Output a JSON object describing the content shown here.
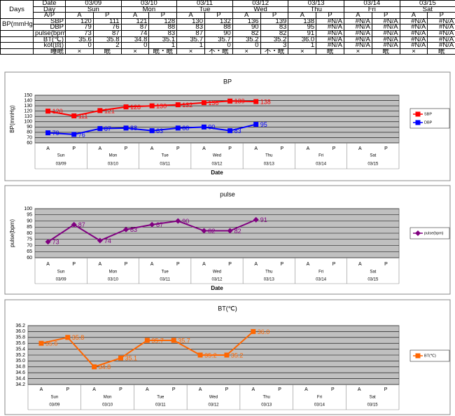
{
  "table": {
    "days_label": "Days",
    "date_label": "Date",
    "day_label": "Day",
    "ap_label": "A/P",
    "bp_label": "BP(mmHg)",
    "dates": [
      "03/09",
      "03/10",
      "03/11",
      "03/12",
      "03/13",
      "03/14",
      "03/15"
    ],
    "days": [
      "Sun",
      "Mon",
      "Tue",
      "Wed",
      "Thu",
      "Fri",
      "Sat"
    ],
    "ap": [
      "A",
      "P",
      "A",
      "P",
      "A",
      "P",
      "A",
      "P",
      "A",
      "P",
      "A",
      "P",
      "A",
      "P"
    ],
    "rows": [
      {
        "label": "SBP",
        "cells": [
          "120",
          "111",
          "121",
          "128",
          "130",
          "132",
          "136",
          "139",
          "138",
          "#N/A",
          "#N/A",
          "#N/A",
          "#N/A",
          "#N/A"
        ]
      },
      {
        "label": "DBP",
        "cells": [
          "79",
          "76",
          "87",
          "88",
          "83",
          "88",
          "90",
          "83",
          "95",
          "#N/A",
          "#N/A",
          "#N/A",
          "#N/A",
          "#N/A"
        ]
      },
      {
        "label": "pulse(bpm)",
        "cells": [
          "73",
          "87",
          "74",
          "83",
          "87",
          "90",
          "82",
          "82",
          "91",
          "#N/A",
          "#N/A",
          "#N/A",
          "#N/A",
          "#N/A"
        ]
      },
      {
        "label": "BT(℃)",
        "cells": [
          "35.6",
          "35.8",
          "34.8",
          "35.1",
          "35.7",
          "35.7",
          "35.2",
          "35.2",
          "36.0",
          "#N/A",
          "#N/A",
          "#N/A",
          "#N/A",
          "#N/A"
        ]
      },
      {
        "label": "kot(回)",
        "cells": [
          "0",
          "2",
          "0",
          "1",
          "1",
          "0",
          "0",
          "3",
          "1",
          "#N/A",
          "#N/A",
          "#N/A",
          "#N/A",
          "#N/A"
        ]
      },
      {
        "label": "睡眠",
        "cells": [
          "×",
          "眠",
          "×",
          "眠・眠",
          "×",
          "不・眠",
          "×",
          "不・眠",
          "×",
          "眠",
          "×",
          "眠",
          "×",
          "眠"
        ]
      }
    ]
  },
  "chart_data": [
    {
      "type": "line",
      "title": "BP",
      "ylabel": "BP(mmHg)",
      "xlabel": "Date",
      "categories": [
        "A",
        "P",
        "A",
        "P",
        "A",
        "P",
        "A",
        "P",
        "A",
        "P",
        "A",
        "P",
        "A",
        "P"
      ],
      "groups": [
        {
          "day": "Sun",
          "date": "03/09"
        },
        {
          "day": "Mon",
          "date": "03/10"
        },
        {
          "day": "Tue",
          "date": "03/11"
        },
        {
          "day": "Wed",
          "date": "03/12"
        },
        {
          "day": "Thu",
          "date": "03/13"
        },
        {
          "day": "Fri",
          "date": "03/14"
        },
        {
          "day": "Sat",
          "date": "03/15"
        }
      ],
      "series": [
        {
          "name": "SBP",
          "color": "#ff0000",
          "marker": "square",
          "values": [
            120,
            111,
            121,
            128,
            130,
            132,
            136,
            139,
            138,
            null,
            null,
            null,
            null,
            null
          ]
        },
        {
          "name": "DBP",
          "color": "#0000ff",
          "marker": "square",
          "values": [
            79,
            76,
            87,
            88,
            83,
            88,
            90,
            83,
            95,
            null,
            null,
            null,
            null,
            null
          ]
        }
      ],
      "ylim": [
        60,
        150
      ],
      "yticks": [
        60,
        70,
        80,
        90,
        100,
        110,
        120,
        130,
        140,
        150
      ],
      "grid": true,
      "legend": "right"
    },
    {
      "type": "line",
      "title": "pulse",
      "ylabel": "pulse(bpm)",
      "xlabel": "Date",
      "categories": [
        "A",
        "P",
        "A",
        "P",
        "A",
        "P",
        "A",
        "P",
        "A",
        "P",
        "A",
        "P",
        "A",
        "P"
      ],
      "groups": [
        {
          "day": "Sun",
          "date": "03/09"
        },
        {
          "day": "Mon",
          "date": "03/10"
        },
        {
          "day": "Tue",
          "date": "03/11"
        },
        {
          "day": "Wed",
          "date": "03/12"
        },
        {
          "day": "Thu",
          "date": "03/13"
        },
        {
          "day": "Fri",
          "date": "03/14"
        },
        {
          "day": "Sat",
          "date": "03/15"
        }
      ],
      "series": [
        {
          "name": "pulse(bpm)",
          "color": "#800080",
          "marker": "diamond",
          "values": [
            73,
            87,
            74,
            83,
            87,
            90,
            82,
            82,
            91,
            null,
            null,
            null,
            null,
            null
          ]
        }
      ],
      "ylim": [
        60,
        100
      ],
      "yticks": [
        60,
        65,
        70,
        75,
        80,
        85,
        90,
        95,
        100
      ],
      "grid": true,
      "legend": "right"
    },
    {
      "type": "line",
      "title": "BT(℃)",
      "categories": [
        "A",
        "P",
        "A",
        "P",
        "A",
        "P",
        "A",
        "P",
        "A",
        "P",
        "A",
        "P",
        "A",
        "P"
      ],
      "groups": [
        {
          "day": "Sun",
          "date": "03/09"
        },
        {
          "day": "Mon",
          "date": "03/10"
        },
        {
          "day": "Tue",
          "date": "03/11"
        },
        {
          "day": "Wed",
          "date": "03/12"
        },
        {
          "day": "Thu",
          "date": "03/13"
        },
        {
          "day": "Fri",
          "date": "03/14"
        },
        {
          "day": "Sat",
          "date": "03/15"
        }
      ],
      "series": [
        {
          "name": "BT(℃)",
          "color": "#ff6600",
          "marker": "square",
          "values": [
            35.6,
            35.8,
            34.8,
            35.1,
            35.7,
            35.7,
            35.2,
            35.2,
            36,
            null,
            null,
            null,
            null,
            null
          ],
          "value_labels": [
            "35.6",
            "35.8",
            "34.8",
            "35.1",
            "35.7",
            "35.7",
            "35.2",
            "35.2",
            "36.0",
            null,
            null,
            null,
            null,
            null
          ]
        }
      ],
      "ylim": [
        34.2,
        36.2
      ],
      "yticks": [
        34.2,
        34.4,
        34.6,
        34.8,
        {
          "value": 35,
          "label": "35.0"
        },
        35.2,
        35.4,
        35.6,
        35.8,
        {
          "value": 36,
          "label": "36.0"
        },
        36.2
      ],
      "grid": true,
      "legend": "right"
    }
  ]
}
